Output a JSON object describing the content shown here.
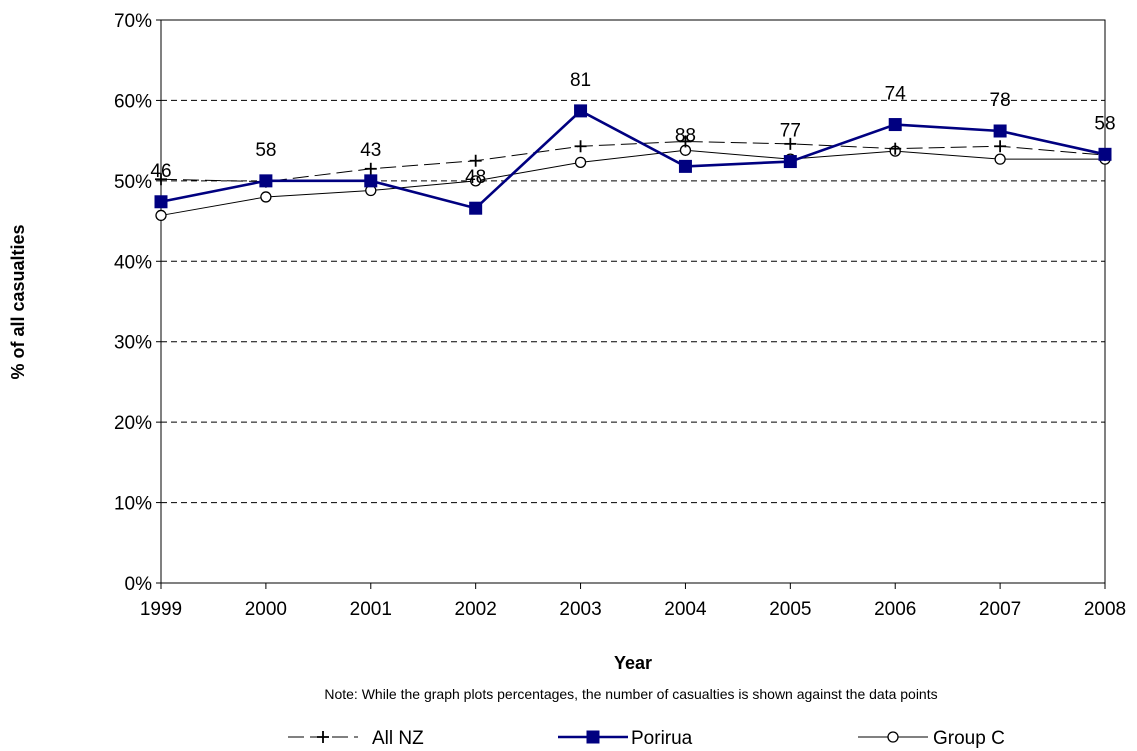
{
  "chart_data": {
    "type": "line",
    "categories": [
      "1999",
      "2000",
      "2001",
      "2002",
      "2003",
      "2004",
      "2005",
      "2006",
      "2007",
      "2008"
    ],
    "ylim": [
      0,
      70
    ],
    "yticks": [
      "0%",
      "10%",
      "20%",
      "30%",
      "40%",
      "50%",
      "60%",
      "70%"
    ],
    "xlabel": "Year",
    "ylabel": "% of all casualties",
    "note": "Note: While the graph plots percentages, the number of casualties is shown  against the data points",
    "grid": "horizontal dashed",
    "legend_position": "bottom",
    "series": [
      {
        "name": "All NZ",
        "marker": "plus",
        "line_style": "dashed",
        "color": "#000000",
        "values": [
          50.2,
          49.9,
          51.5,
          52.5,
          54.3,
          54.9,
          54.6,
          54.0,
          54.3,
          53.2
        ]
      },
      {
        "name": "Porirua",
        "marker": "square",
        "line_style": "solid",
        "color": "#000080",
        "values": [
          47.4,
          50.0,
          50.0,
          46.6,
          58.7,
          51.8,
          52.4,
          57.0,
          56.2,
          53.3
        ],
        "data_labels": [
          "46",
          "58",
          "43",
          "48",
          "81",
          "88",
          "77",
          "74",
          "78",
          "58"
        ]
      },
      {
        "name": "Group C",
        "marker": "circle",
        "line_style": "solid",
        "color": "#000000",
        "values": [
          45.7,
          48.0,
          48.8,
          50.0,
          52.3,
          53.8,
          52.7,
          53.7,
          52.7,
          52.7
        ]
      }
    ]
  }
}
